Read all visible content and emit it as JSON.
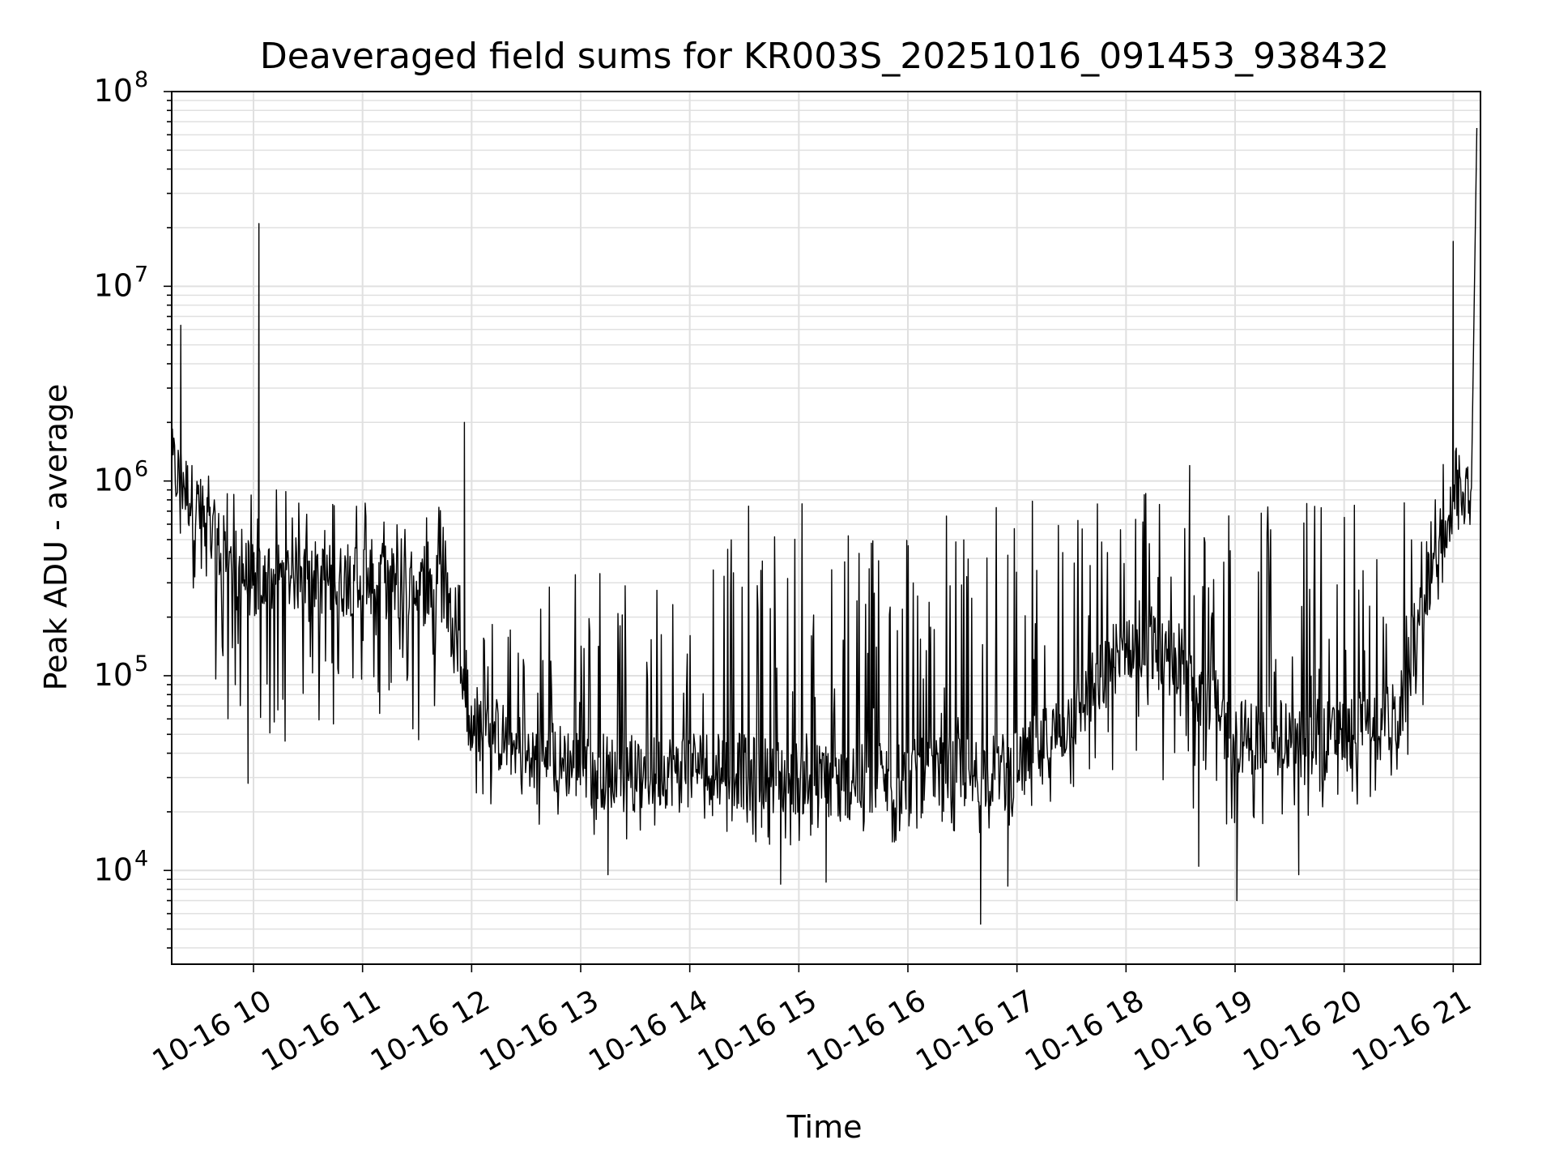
{
  "chart_data": {
    "type": "line",
    "title": "Deaveraged field sums for KR003S_20251016_091453_938432",
    "xlabel": "Time",
    "ylabel": "Peak ADU - average",
    "x_tick_labels": [
      "10-16 10",
      "10-16 11",
      "10-16 12",
      "10-16 13",
      "10-16 14",
      "10-16 15",
      "10-16 16",
      "10-16 17",
      "10-16 18",
      "10-16 19",
      "10-16 20",
      "10-16 21"
    ],
    "y_tick_labels": [
      {
        "base": "10",
        "exp": "4"
      },
      {
        "base": "10",
        "exp": "5"
      },
      {
        "base": "10",
        "exp": "6"
      },
      {
        "base": "10",
        "exp": "7"
      },
      {
        "base": "10",
        "exp": "8"
      }
    ],
    "x_range": [
      "2025-10-16 09:15",
      "2025-10-16 21:15"
    ],
    "yscale": "log",
    "ylim": [
      3300,
      100000000
    ],
    "grid": true,
    "line_color": "#000000",
    "grid_color": "#e0e0e0",
    "series": [
      {
        "x": [
          "2025-10-16 09:15",
          "2025-10-16 09:30",
          "2025-10-16 09:45",
          "2025-10-16 10:00",
          "2025-10-16 10:15",
          "2025-10-16 10:30",
          "2025-10-16 10:45",
          "2025-10-16 11:00",
          "2025-10-16 11:15",
          "2025-10-16 11:30",
          "2025-10-16 11:45",
          "2025-10-16 12:00",
          "2025-10-16 12:30",
          "2025-10-16 13:00",
          "2025-10-16 13:30",
          "2025-10-16 14:00",
          "2025-10-16 14:30",
          "2025-10-16 15:00",
          "2025-10-16 15:30",
          "2025-10-16 16:00",
          "2025-10-16 16:30",
          "2025-10-16 17:00",
          "2025-10-16 17:30",
          "2025-10-16 18:00",
          "2025-10-16 18:30",
          "2025-10-16 19:00",
          "2025-10-16 19:30",
          "2025-10-16 20:00",
          "2025-10-16 20:30",
          "2025-10-16 20:45",
          "2025-10-16 21:00",
          "2025-10-16 21:10"
        ],
        "y": [
          1200000,
          700000,
          400000,
          300000,
          320000,
          340000,
          300000,
          330000,
          300000,
          280000,
          280000,
          60000,
          40000,
          35000,
          30000,
          35000,
          32000,
          30000,
          28000,
          30000,
          32000,
          33000,
          60000,
          150000,
          120000,
          50000,
          45000,
          50000,
          60000,
          250000,
          850000,
          900000
        ],
        "low_envelope": [
          500000,
          200000,
          60000,
          50000,
          45000,
          50000,
          50000,
          55000,
          50000,
          45000,
          40000,
          22000,
          18000,
          15000,
          14000,
          18000,
          14000,
          13000,
          13000,
          13000,
          15000,
          16000,
          20000,
          20000,
          20000,
          15000,
          15000,
          20000,
          25000,
          80000,
          600000,
          700000
        ],
        "high_envelope": [
          1800000,
          1200000,
          950000,
          950000,
          900000,
          900000,
          900000,
          950000,
          850000,
          800000,
          800000,
          200000,
          250000,
          500000,
          300000,
          700000,
          750000,
          800000,
          800000,
          750000,
          750000,
          800000,
          900000,
          1000000,
          1000000,
          900000,
          850000,
          900000,
          800000,
          900000,
          1600000,
          1400000
        ],
        "spikes": [
          {
            "x": "2025-10-16 09:20",
            "y": 6300000
          },
          {
            "x": "2025-10-16 10:03",
            "y": 21000000
          },
          {
            "x": "2025-10-16 11:56",
            "y": 2000000
          },
          {
            "x": "2025-10-16 18:35",
            "y": 1200000
          },
          {
            "x": "2025-10-16 21:00",
            "y": 17000000
          },
          {
            "x": "2025-10-16 21:13",
            "y": 65000000
          }
        ],
        "dips": [
          {
            "x": "2025-10-16 09:57",
            "y": 28000
          },
          {
            "x": "2025-10-16 13:15",
            "y": 9500
          },
          {
            "x": "2025-10-16 14:50",
            "y": 8500
          },
          {
            "x": "2025-10-16 15:15",
            "y": 8700
          },
          {
            "x": "2025-10-16 16:40",
            "y": 5300
          },
          {
            "x": "2025-10-16 16:55",
            "y": 8300
          },
          {
            "x": "2025-10-16 18:40",
            "y": 10500
          },
          {
            "x": "2025-10-16 19:01",
            "y": 7000
          },
          {
            "x": "2025-10-16 19:35",
            "y": 9500
          }
        ]
      }
    ]
  }
}
